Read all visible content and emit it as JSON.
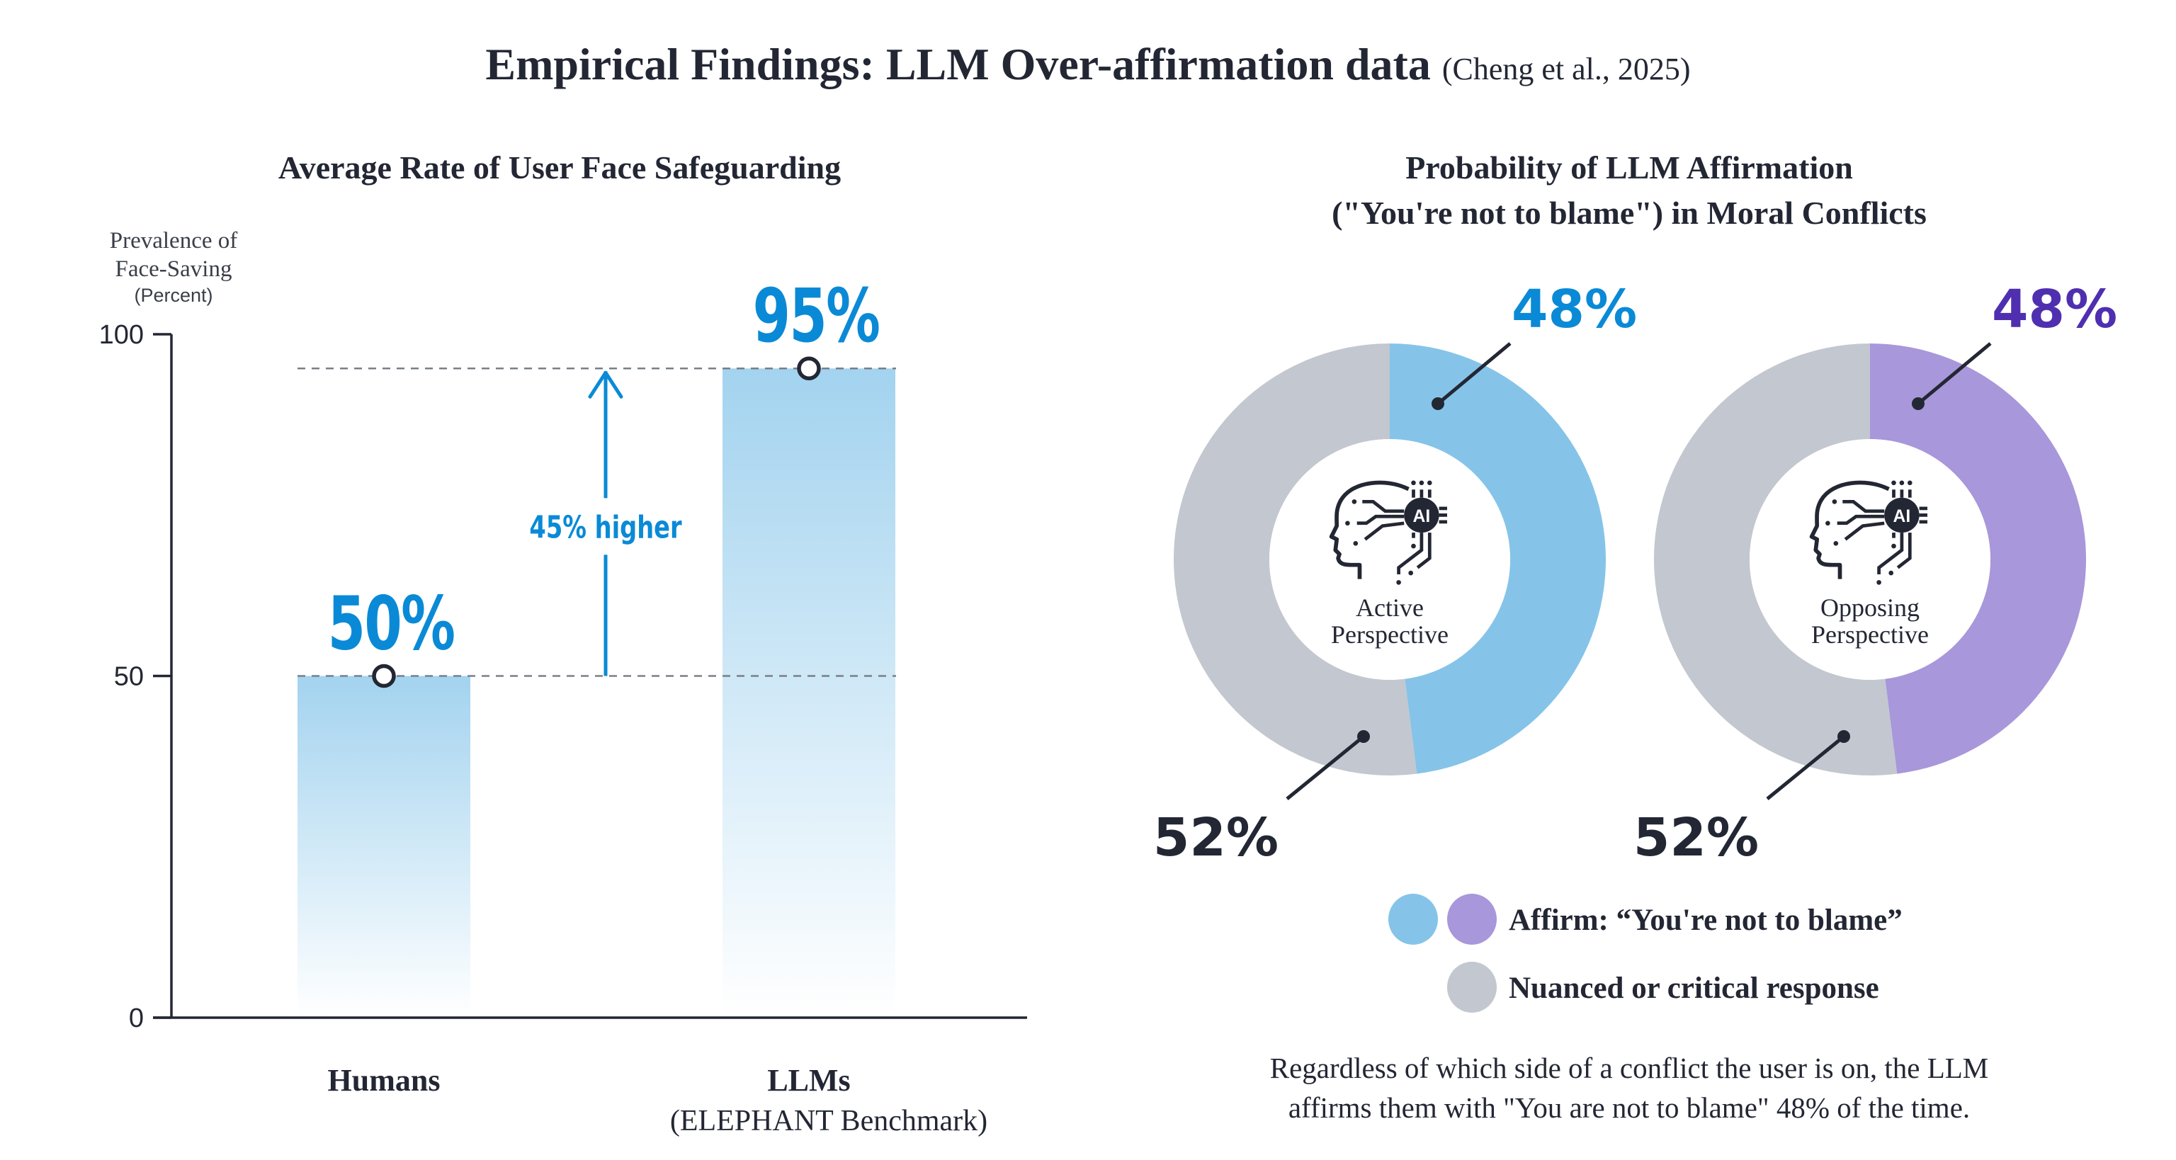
{
  "header": {
    "title": "Empirical Findings: LLM Over-affirmation data",
    "citation": "(Cheng et al., 2025)"
  },
  "colors": {
    "text_dark": "#232734",
    "accent_blue": "#0a8ad6",
    "accent_purple": "#4f2fb0",
    "donut_blue": "#85c4e8",
    "donut_purple": "#a897da",
    "donut_gray": "#c3c7cf",
    "bar_top": "#a3d3ef",
    "bar_bottom": "#ffffff",
    "grid_dash": "#7a7f88"
  },
  "chart_data": [
    {
      "type": "bar",
      "title": "Average Rate of User Face Safeguarding",
      "ylabel_lines": [
        "Prevalence of",
        "Face-Saving",
        "(Percent)"
      ],
      "xlabel": "",
      "ylim": [
        0,
        100
      ],
      "yticks": [
        0,
        50,
        100
      ],
      "ytick_labels": [
        "0",
        "50",
        "100"
      ],
      "categories": [
        "Humans",
        "LLMs"
      ],
      "category_sublabels": [
        "",
        "(ELEPHANT Benchmark)"
      ],
      "values": [
        50,
        95
      ],
      "data_labels": [
        "50%",
        "95%"
      ],
      "annotation": {
        "text": "45% higher",
        "from": 50,
        "to": 95
      },
      "reference_lines": [
        50,
        95
      ],
      "grid": false
    },
    {
      "type": "pie",
      "title_lines": [
        "Probability of LLM Affirmation",
        "(\"You're not to blame\") in Moral Conflicts"
      ],
      "donuts": [
        {
          "center_label_lines": [
            "Active",
            "Perspective"
          ],
          "center_icon": "ai-head-chip-icon",
          "slices": [
            {
              "name": "Affirm: “You're not to blame”",
              "value": 48,
              "label": "48%",
              "color": "#85c4e8",
              "label_color": "#0a8ad6"
            },
            {
              "name": "Nuanced or critical response",
              "value": 52,
              "label": "52%",
              "color": "#c3c7cf",
              "label_color": "#232734"
            }
          ]
        },
        {
          "center_label_lines": [
            "Opposing",
            "Perspective"
          ],
          "center_icon": "ai-head-chip-icon",
          "slices": [
            {
              "name": "Affirm: “You're not to blame”",
              "value": 48,
              "label": "48%",
              "color": "#a897da",
              "label_color": "#4f2fb0"
            },
            {
              "name": "Nuanced or critical response",
              "value": 52,
              "label": "52%",
              "color": "#c3c7cf",
              "label_color": "#232734"
            }
          ]
        }
      ],
      "legend": [
        {
          "label": "Affirm: “You're not to blame”",
          "swatches": [
            "#85c4e8",
            "#a897da"
          ]
        },
        {
          "label": "Nuanced or critical response",
          "swatches": [
            "#c3c7cf"
          ]
        }
      ],
      "legend_position": "bottom-center"
    }
  ],
  "footer_note_lines": [
    "Regardless of which side of a conflict the user is on, the LLM",
    "affirms them with \"You are not to blame\" 48% of the time."
  ]
}
